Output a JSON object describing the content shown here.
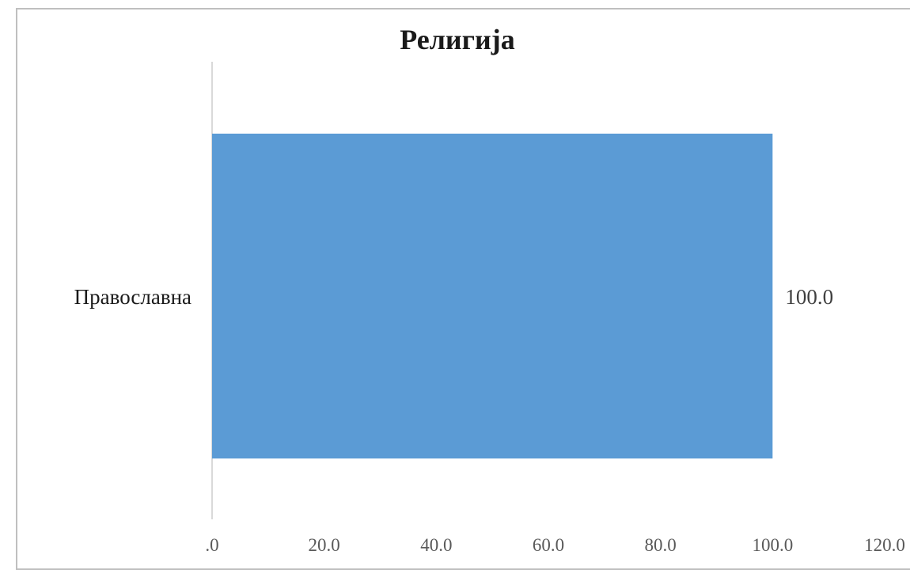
{
  "chart_data": {
    "type": "bar",
    "orientation": "horizontal",
    "title": "Религија",
    "xlabel": "",
    "ylabel": "",
    "categories": [
      "Православна"
    ],
    "values": [
      100.0
    ],
    "data_labels": [
      "100.0"
    ],
    "xlim": [
      0,
      120
    ],
    "x_ticks": [
      0,
      20,
      40,
      60,
      80,
      100,
      120
    ],
    "x_tick_labels": [
      ".0",
      "20.0",
      "40.0",
      "60.0",
      "80.0",
      "100.0",
      "120.0"
    ],
    "grid": false,
    "legend": "none",
    "bar_color": "#5b9bd5"
  }
}
